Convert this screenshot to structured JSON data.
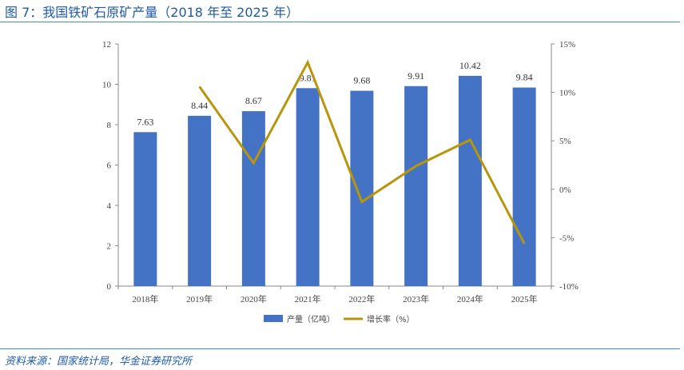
{
  "title": "图 7：我国铁矿石原矿产量（2018 年至 2025 年）",
  "source": "资料来源：国家统计局，华金证券研究所",
  "colors": {
    "bar": "#4472c4",
    "line": "#b8960c",
    "title": "#1f5aa8",
    "rule": "#3f8fd2"
  },
  "chart_data": {
    "type": "bar",
    "categories": [
      "2018年",
      "2019年",
      "2020年",
      "2021年",
      "2022年",
      "2023年",
      "2024年",
      "2025年"
    ],
    "series": [
      {
        "name": "产量（亿吨）",
        "type": "bar",
        "axis": "left",
        "values": [
          7.63,
          8.44,
          8.67,
          9.81,
          9.68,
          9.91,
          10.42,
          9.84
        ]
      },
      {
        "name": "增长率（%）",
        "type": "line",
        "axis": "right",
        "values": [
          null,
          10.6,
          2.7,
          13.1,
          -1.3,
          2.4,
          5.1,
          -5.6
        ]
      }
    ],
    "data_labels": [
      "7.63",
      "8.44",
      "8.67",
      "9.81",
      "9.68",
      "9.91",
      "10.42",
      "9.84"
    ],
    "y_left": {
      "ylim": [
        0,
        12
      ],
      "ticks": [
        "0",
        "2",
        "4",
        "6",
        "8",
        "10",
        "12"
      ]
    },
    "y_right": {
      "ylim": [
        -10,
        15
      ],
      "ticks": [
        "-10%",
        "-5%",
        "0%",
        "5%",
        "10%",
        "15%"
      ]
    },
    "legend": "bottom",
    "grid": false
  }
}
